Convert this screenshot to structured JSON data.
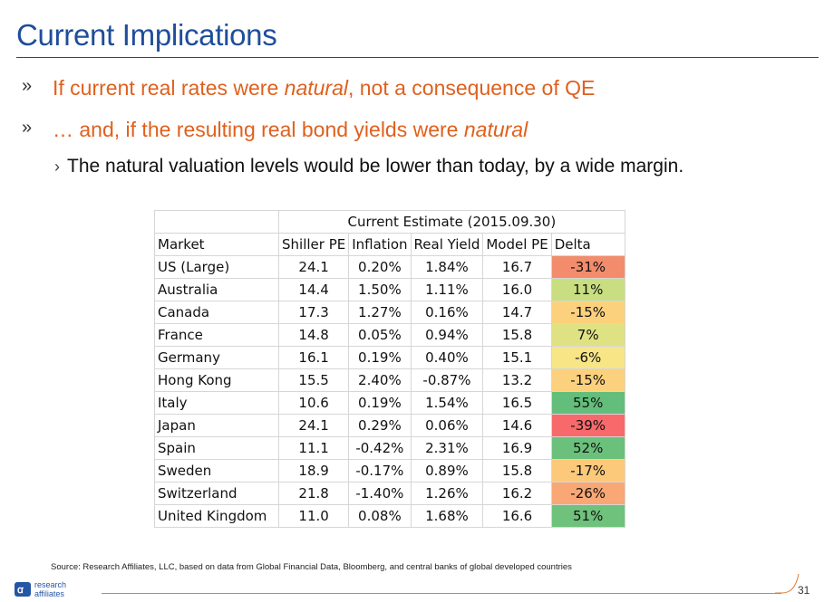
{
  "slide": {
    "title": "Current Implications",
    "bullet1": {
      "before": "If current real rates were ",
      "em": "natural",
      "after": ", not a consequence of QE"
    },
    "bullet2": {
      "before": "… and, if the resulting real bond yields were ",
      "em": "natural"
    },
    "sub": "The natural valuation levels would be lower than today, by a wide margin.",
    "source": "Source: Research Affiliates, LLC, based on data from Global Financial Data, Bloomberg, and central banks of global developed countries",
    "logo": {
      "line1": "research",
      "line2": "affiliates"
    },
    "page_number": "31"
  },
  "table": {
    "group_header": "Current Estimate (2015.09.30)",
    "headers": [
      "Market",
      "Shiller PE",
      "Inflation",
      "Real Yield",
      "Model PE",
      "Delta"
    ],
    "rows": [
      {
        "market": "US (Large)",
        "shiller": "24.1",
        "inflation": "0.20%",
        "real_yield": "1.84%",
        "model_pe": "16.7",
        "delta": "-31%",
        "color": "#f28c6c"
      },
      {
        "market": "Australia",
        "shiller": "14.4",
        "inflation": "1.50%",
        "real_yield": "1.11%",
        "model_pe": "16.0",
        "delta": "11%",
        "color": "#c8de80"
      },
      {
        "market": "Canada",
        "shiller": "17.3",
        "inflation": "1.27%",
        "real_yield": "0.16%",
        "model_pe": "14.7",
        "delta": "-15%",
        "color": "#fcd17d"
      },
      {
        "market": "France",
        "shiller": "14.8",
        "inflation": "0.05%",
        "real_yield": "0.94%",
        "model_pe": "15.8",
        "delta": "7%",
        "color": "#dfe283"
      },
      {
        "market": "Germany",
        "shiller": "16.1",
        "inflation": "0.19%",
        "real_yield": "0.40%",
        "model_pe": "15.1",
        "delta": "-6%",
        "color": "#f7e586"
      },
      {
        "market": "Hong Kong",
        "shiller": "15.5",
        "inflation": "2.40%",
        "real_yield": "-0.87%",
        "model_pe": "13.2",
        "delta": "-15%",
        "color": "#fcd17d"
      },
      {
        "market": "Italy",
        "shiller": "10.6",
        "inflation": "0.19%",
        "real_yield": "1.54%",
        "model_pe": "16.5",
        "delta": "55%",
        "color": "#63be7b"
      },
      {
        "market": "Japan",
        "shiller": "24.1",
        "inflation": "0.29%",
        "real_yield": "0.06%",
        "model_pe": "14.6",
        "delta": "-39%",
        "color": "#f8696b"
      },
      {
        "market": "Spain",
        "shiller": "11.1",
        "inflation": "-0.42%",
        "real_yield": "2.31%",
        "model_pe": "16.9",
        "delta": "52%",
        "color": "#6bc17c"
      },
      {
        "market": "Sweden",
        "shiller": "18.9",
        "inflation": "-0.17%",
        "real_yield": "0.89%",
        "model_pe": "15.8",
        "delta": "-17%",
        "color": "#fcc97b"
      },
      {
        "market": "Switzerland",
        "shiller": "21.8",
        "inflation": "-1.40%",
        "real_yield": "1.26%",
        "model_pe": "16.2",
        "delta": "-26%",
        "color": "#f9a774"
      },
      {
        "market": "United Kingdom",
        "shiller": "11.0",
        "inflation": "0.08%",
        "real_yield": "1.68%",
        "model_pe": "16.6",
        "delta": "51%",
        "color": "#6fc27c"
      }
    ]
  },
  "colors": {
    "title": "#1f4e9a",
    "accent": "#e0601d",
    "logo": "#2456a6"
  }
}
